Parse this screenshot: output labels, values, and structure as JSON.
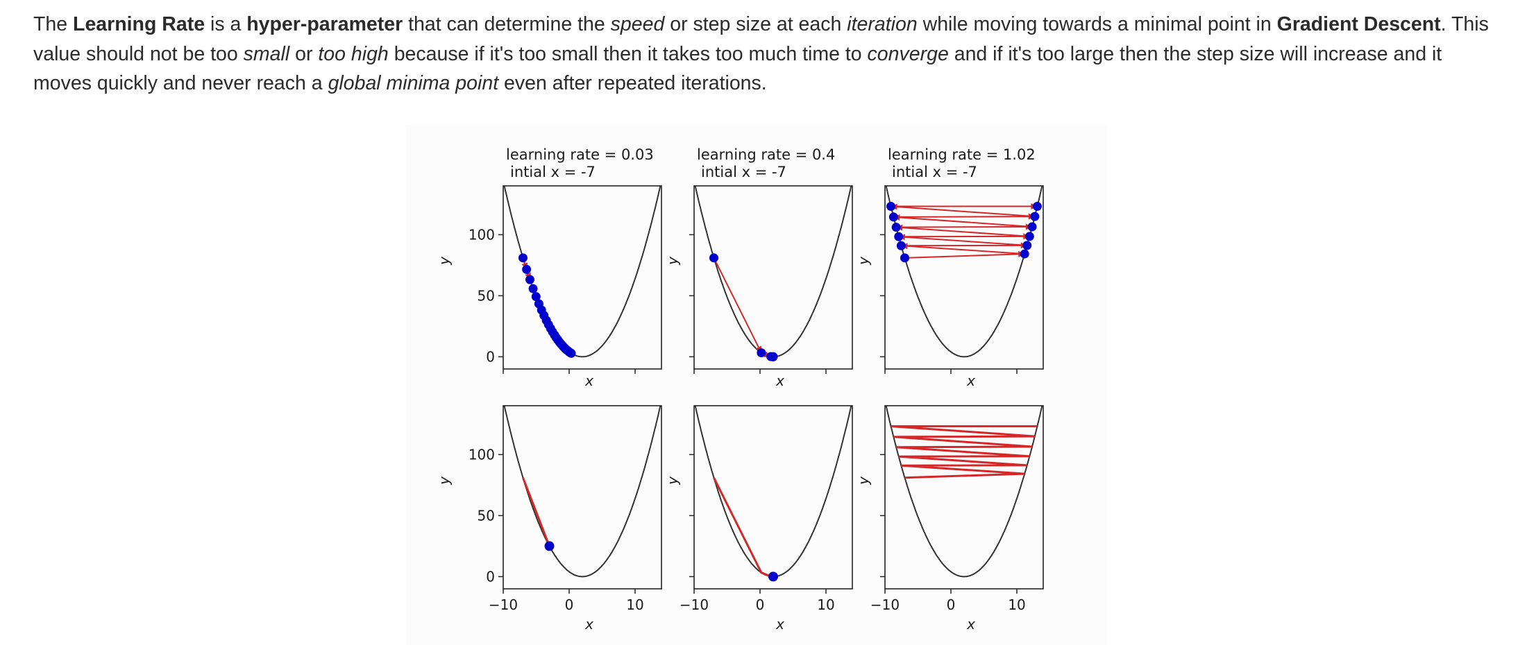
{
  "paragraph": {
    "segments": [
      {
        "text": "The ",
        "style": "normal"
      },
      {
        "text": "Learning Rate",
        "style": "bold"
      },
      {
        "text": " is a ",
        "style": "normal"
      },
      {
        "text": "hyper-parameter",
        "style": "bold"
      },
      {
        "text": " that can determine the ",
        "style": "normal"
      },
      {
        "text": "speed",
        "style": "italic"
      },
      {
        "text": " or step size at each ",
        "style": "normal"
      },
      {
        "text": "iteration",
        "style": "italic"
      },
      {
        "text": " while moving towards a minimal point in ",
        "style": "normal"
      },
      {
        "text": "Gradient Descent",
        "style": "bold"
      },
      {
        "text": ". This value should not be too ",
        "style": "normal"
      },
      {
        "text": "small",
        "style": "italic"
      },
      {
        "text": " or ",
        "style": "normal"
      },
      {
        "text": "too high",
        "style": "italic"
      },
      {
        "text": " because if it's too small then it takes too much time to ",
        "style": "normal"
      },
      {
        "text": "converge",
        "style": "italic"
      },
      {
        "text": " and if it's too large then the step size will increase and it moves quickly and never reach a ",
        "style": "normal"
      },
      {
        "text": "global minima point",
        "style": "italic"
      },
      {
        "text": " even after repeated iterations.",
        "style": "normal"
      }
    ]
  },
  "figure": {
    "columns": [
      {
        "title_line1": "learning rate = 0.03",
        "title_line2": "intial x = -7"
      },
      {
        "title_line1": "learning rate = 0.4",
        "title_line2": "intial x = -7"
      },
      {
        "title_line1": "learning rate = 1.02",
        "title_line2": "intial x = -7"
      }
    ],
    "axis_xlabel": "x",
    "axis_ylabel": "y",
    "y_ticks": [
      "0",
      "50",
      "100"
    ],
    "x_ticks": [
      "−10",
      "0",
      "10"
    ]
  },
  "chart_data": {
    "type": "line",
    "function": "y = (x - 2)^2",
    "x_range": [
      -10,
      14
    ],
    "y_range": [
      -10,
      140
    ],
    "x_ticks": [
      -10,
      0,
      10
    ],
    "y_ticks": [
      0,
      50,
      100
    ],
    "panels": [
      {
        "learning_rate": 0.03,
        "initial_x": -7,
        "row": "top",
        "path_x": [
          -7,
          -6.46,
          -5.95,
          -5.47,
          -5.02,
          -4.59,
          -4.19,
          -3.82,
          -3.46,
          -3.13,
          -2.81,
          -2.52,
          -2.23,
          -1.97,
          -1.72,
          -1.48,
          -1.26,
          -1.04,
          -0.84,
          -0.65,
          -0.47,
          -0.3,
          -0.14,
          0.01,
          0.15,
          0.26,
          0.32
        ]
      },
      {
        "learning_rate": 0.4,
        "initial_x": -7,
        "row": "top",
        "path_x": [
          -7,
          0.2,
          1.64,
          1.93,
          1.99,
          2.0
        ]
      },
      {
        "learning_rate": 1.02,
        "initial_x": -7,
        "row": "top",
        "path_x": [
          -7,
          11.18,
          -7.54,
          11.55,
          -7.92,
          11.93,
          -8.3,
          12.32,
          -8.7,
          12.72,
          -9.1,
          13.1
        ]
      },
      {
        "learning_rate": 0.03,
        "initial_x": -7,
        "row": "bottom",
        "path_x": [
          -7,
          -3.0
        ]
      },
      {
        "learning_rate": 0.4,
        "initial_x": -7,
        "row": "bottom",
        "path_x": [
          -7,
          0.2,
          1.64,
          1.93,
          2.0
        ]
      },
      {
        "learning_rate": 1.02,
        "initial_x": -7,
        "row": "bottom",
        "path_x": [
          -7,
          11.18,
          -7.54,
          11.55,
          -7.92,
          11.93,
          -8.3,
          12.32,
          -8.7,
          12.72,
          -9.1,
          13.1
        ]
      }
    ],
    "colors": {
      "curve": "#333333",
      "path": "#d62728",
      "marker": "#0000cc"
    }
  }
}
